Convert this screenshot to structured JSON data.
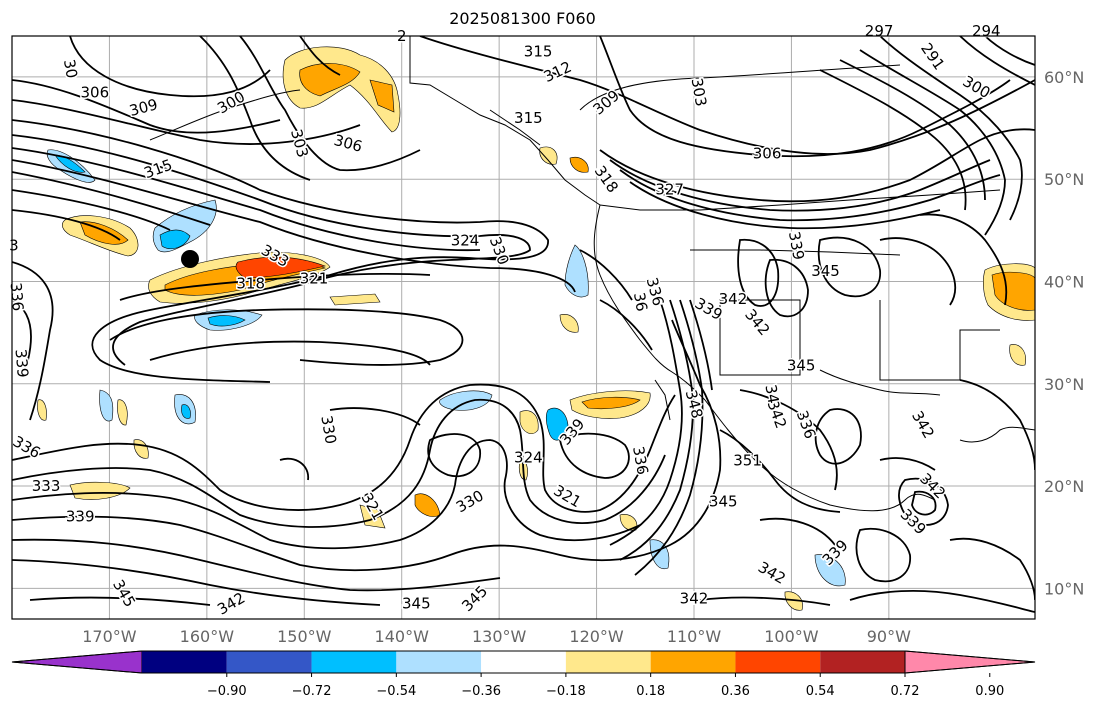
{
  "title": "2025081300 F060",
  "map": {
    "type": "contour_map",
    "region": "North Pacific / North America",
    "lon_range": [
      -180,
      -75
    ],
    "lat_range": [
      7,
      64
    ],
    "gridlines": true,
    "marker": "black-dot",
    "latitude_labels": [
      "60°N",
      "50°N",
      "40°N",
      "30°N",
      "20°N",
      "10°N"
    ],
    "longitude_labels": [
      "170°W",
      "160°W",
      "150°W",
      "140°W",
      "130°W",
      "120°W",
      "110°W",
      "100°W",
      "90°W"
    ],
    "contour_labels": [
      {
        "text": "306",
        "lon": -171.5,
        "lat": 58.5,
        "rot": 0
      },
      {
        "text": "309",
        "lon": -166.5,
        "lat": 57.0,
        "rot": 15
      },
      {
        "text": "300",
        "lon": -157.5,
        "lat": 57.5,
        "rot": 30
      },
      {
        "text": "303",
        "lon": -150.5,
        "lat": 53.5,
        "rot": -75
      },
      {
        "text": "306",
        "lon": -145.5,
        "lat": 53.5,
        "rot": -15
      },
      {
        "text": "315",
        "lon": -165.0,
        "lat": 51.0,
        "rot": 20
      },
      {
        "text": "324",
        "lon": -133.5,
        "lat": 44.0,
        "rot": 0
      },
      {
        "text": "330",
        "lon": -130.0,
        "lat": 43.0,
        "rot": -70
      },
      {
        "text": "333",
        "lon": -153.0,
        "lat": 42.5,
        "rot": -30
      },
      {
        "text": "318",
        "lon": -155.5,
        "lat": 39.8,
        "rot": 0
      },
      {
        "text": "321",
        "lon": -149.0,
        "lat": 40.3,
        "rot": 0
      },
      {
        "text": "315",
        "lon": -126.0,
        "lat": 62.5,
        "rot": 0
      },
      {
        "text": "312",
        "lon": -124.0,
        "lat": 60.5,
        "rot": 25
      },
      {
        "text": "315",
        "lon": -127.0,
        "lat": 56.0,
        "rot": 0
      },
      {
        "text": "309",
        "lon": -119.0,
        "lat": 57.5,
        "rot": 40
      },
      {
        "text": "303",
        "lon": -109.5,
        "lat": 58.5,
        "rot": -80
      },
      {
        "text": "318",
        "lon": -119.0,
        "lat": 50.0,
        "rot": -55
      },
      {
        "text": "327",
        "lon": -112.5,
        "lat": 49.0,
        "rot": 0
      },
      {
        "text": "306",
        "lon": -102.5,
        "lat": 52.5,
        "rot": 0
      },
      {
        "text": "300",
        "lon": -81.0,
        "lat": 59.0,
        "rot": -30
      },
      {
        "text": "291",
        "lon": -85.5,
        "lat": 62.0,
        "rot": -55
      },
      {
        "text": "294",
        "lon": -80.0,
        "lat": 64.5,
        "rot": 0
      },
      {
        "text": "297",
        "lon": -91.0,
        "lat": 64.5,
        "rot": 0
      },
      {
        "text": "339",
        "lon": -99.5,
        "lat": 43.5,
        "rot": -80
      },
      {
        "text": "345",
        "lon": -96.5,
        "lat": 41.0,
        "rot": 0
      },
      {
        "text": "342",
        "lon": -106.0,
        "lat": 38.3,
        "rot": 0
      },
      {
        "text": "339",
        "lon": -108.5,
        "lat": 37.3,
        "rot": -30
      },
      {
        "text": "342",
        "lon": -103.5,
        "lat": 36.0,
        "rot": -50
      },
      {
        "text": "345",
        "lon": -99.0,
        "lat": 31.8,
        "rot": 0
      },
      {
        "text": "336",
        "lon": -114.0,
        "lat": 39.0,
        "rot": -75
      },
      {
        "text": "348",
        "lon": -110.0,
        "lat": 28.0,
        "rot": -75
      },
      {
        "text": "342",
        "lon": -101.5,
        "lat": 27.0,
        "rot": -70
      },
      {
        "text": "336",
        "lon": -98.5,
        "lat": 26.0,
        "rot": -70
      },
      {
        "text": "342",
        "lon": -86.5,
        "lat": 26.0,
        "rot": -60
      },
      {
        "text": "351",
        "lon": -104.5,
        "lat": 22.5,
        "rot": 0
      },
      {
        "text": "345",
        "lon": -107.0,
        "lat": 18.5,
        "rot": 0
      },
      {
        "text": "342",
        "lon": -85.5,
        "lat": 20.0,
        "rot": -45
      },
      {
        "text": "339",
        "lon": -87.5,
        "lat": 16.5,
        "rot": -45
      },
      {
        "text": "339",
        "lon": -95.5,
        "lat": 13.5,
        "rot": 45
      },
      {
        "text": "342",
        "lon": -102.0,
        "lat": 11.5,
        "rot": -30
      },
      {
        "text": "342",
        "lon": -110.0,
        "lat": 9.0,
        "rot": 0
      },
      {
        "text": "336",
        "lon": -115.5,
        "lat": 22.5,
        "rot": -80
      },
      {
        "text": "339",
        "lon": -122.5,
        "lat": 25.3,
        "rot": 50
      },
      {
        "text": "324",
        "lon": -127.0,
        "lat": 22.8,
        "rot": 0
      },
      {
        "text": "321",
        "lon": -123.0,
        "lat": 19.0,
        "rot": -30
      },
      {
        "text": "330",
        "lon": -133.0,
        "lat": 18.5,
        "rot": 30
      },
      {
        "text": "321",
        "lon": -143.0,
        "lat": 18.0,
        "rot": -60
      },
      {
        "text": "330",
        "lon": -147.5,
        "lat": 25.5,
        "rot": -80
      },
      {
        "text": "333",
        "lon": -176.5,
        "lat": 20.0,
        "rot": 0
      },
      {
        "text": "339",
        "lon": -173.0,
        "lat": 17.0,
        "rot": 0
      },
      {
        "text": "336",
        "lon": -178.5,
        "lat": 23.8,
        "rot": -30
      },
      {
        "text": "339",
        "lon": -179.0,
        "lat": 32.0,
        "rot": -85
      },
      {
        "text": "336",
        "lon": -179.5,
        "lat": 38.5,
        "rot": -85
      },
      {
        "text": "345",
        "lon": -168.5,
        "lat": 9.5,
        "rot": -60
      },
      {
        "text": "342",
        "lon": -157.5,
        "lat": 8.5,
        "rot": 30
      },
      {
        "text": "345",
        "lon": -138.5,
        "lat": 8.5,
        "rot": 0
      },
      {
        "text": "345",
        "lon": -132.5,
        "lat": 9.0,
        "rot": 45
      },
      {
        "text": "3",
        "lon": -179.8,
        "lat": 43.5,
        "rot": 0
      },
      {
        "text": "2",
        "lon": -140.0,
        "lat": 64.0,
        "rot": 0
      },
      {
        "text": "30",
        "lon": -174.0,
        "lat": 60.8,
        "rot": -80
      },
      {
        "text": "34",
        "lon": -102.0,
        "lat": 29.0,
        "rot": -80
      },
      {
        "text": "36",
        "lon": -115.5,
        "lat": 38.0,
        "rot": -80
      }
    ]
  },
  "colorbar": {
    "colors": [
      "#9932CC",
      "#000080",
      "#3457C7",
      "#00BFFF",
      "#AEE0FF",
      "#FFFFFF",
      "#FFE88C",
      "#FFA500",
      "#FF4500",
      "#B22222",
      "#FF88AA"
    ],
    "ticks": [
      "−0.90",
      "−0.72",
      "−0.54",
      "−0.36",
      "−0.18",
      "0.18",
      "0.36",
      "0.54",
      "0.72",
      "0.90"
    ]
  }
}
